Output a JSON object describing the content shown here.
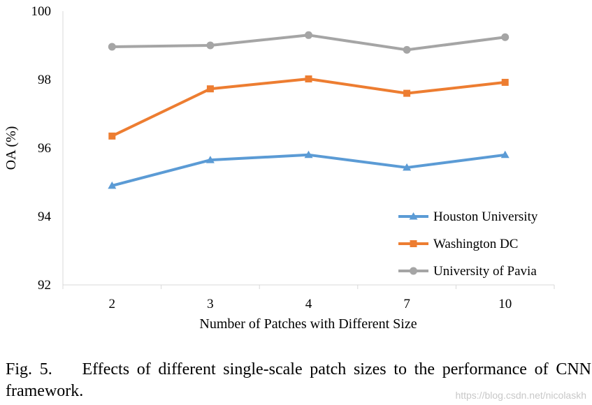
{
  "chart_data": {
    "type": "line",
    "title": "",
    "xlabel": "Number of Patches with Different Size",
    "ylabel": "OA (%)",
    "categories": [
      "2",
      "3",
      "4",
      "7",
      "10"
    ],
    "ylim": [
      92,
      100
    ],
    "yticks": [
      "92",
      "94",
      "96",
      "98",
      "100"
    ],
    "grid": false,
    "legend_position": "bottom-right",
    "series": [
      {
        "name": "Houston University",
        "marker": "triangle",
        "color": "#5B9BD5",
        "values": [
          94.9,
          95.65,
          95.8,
          95.43,
          95.8
        ]
      },
      {
        "name": "Washington DC",
        "marker": "square",
        "color": "#ED7D31",
        "values": [
          96.35,
          97.73,
          98.02,
          97.6,
          97.92
        ]
      },
      {
        "name": "University of Pavia",
        "marker": "circle",
        "color": "#A5A5A5",
        "values": [
          98.96,
          99.0,
          99.3,
          98.87,
          99.24
        ]
      }
    ]
  },
  "caption": {
    "label": "Fig. 5.",
    "text": "Effects of different single-scale patch sizes to the performance of CNN framework."
  },
  "watermark": "https://blog.csdn.net/nicolaskh"
}
